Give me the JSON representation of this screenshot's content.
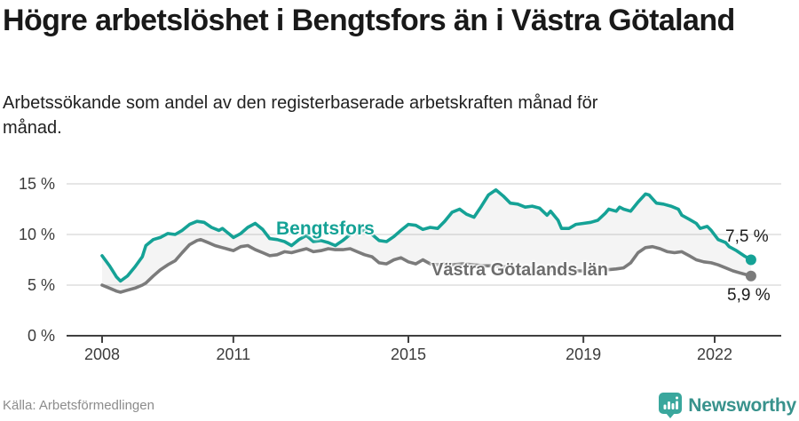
{
  "header": {
    "title": "Högre arbetslöshet i Bengtsfors än i Västra Götaland",
    "subtitle": "Arbetssökande som andel av den registerbaserade arbetskraften månad för månad."
  },
  "footer": {
    "source": "Källa: Arbetsförmedlingen",
    "brand_name": "Newsworthy",
    "brand_icon": "newsworthy-pin-bar-chart-icon"
  },
  "colors": {
    "background": "#ffffff",
    "title_text": "#191919",
    "body_text": "#212121",
    "tick_text": "#3c3c3c",
    "axis": "#404040",
    "grid": "#d8d8d8",
    "band_fill": "rgba(128,128,128,0.09)",
    "bengtsfors_teal": "#15a296",
    "region_gray": "#7b7b7b",
    "region_label_gray": "#6d6d6d",
    "source_gray": "#8c8c8c",
    "brand_teal": "#38928c",
    "brand_icon_teal": "#3aa79d"
  },
  "chart_data": {
    "type": "line",
    "title": "Högre arbetslöshet i Bengtsfors än i Västra Götaland",
    "xlabel": "",
    "ylabel": "",
    "x_unit": "year (monthly observations)",
    "y_unit": "percent of registered labour force",
    "ylim": [
      0,
      15
    ],
    "xlim": [
      2007.2,
      2023.5
    ],
    "grid": "horizontal",
    "legend": "inline-labels",
    "yticks": [
      {
        "value": 15,
        "label": "15 %"
      },
      {
        "value": 10,
        "label": "10 %"
      },
      {
        "value": 5,
        "label": "5 %"
      },
      {
        "value": 0,
        "label": "0 %"
      }
    ],
    "xticks": [
      {
        "value": 2008,
        "label": "2008"
      },
      {
        "value": 2011,
        "label": "2011"
      },
      {
        "value": 2015,
        "label": "2015"
      },
      {
        "value": 2019,
        "label": "2019"
      },
      {
        "value": 2022,
        "label": "2022"
      }
    ],
    "band_between_series": true,
    "series": [
      {
        "name": "Bengtsfors",
        "color": "#15a296",
        "end_label": "7,5 %",
        "end_value": 7.5,
        "points": [
          [
            2008.0,
            7.9
          ],
          [
            2008.17,
            6.9
          ],
          [
            2008.33,
            5.8
          ],
          [
            2008.42,
            5.4
          ],
          [
            2008.58,
            5.9
          ],
          [
            2008.75,
            6.8
          ],
          [
            2008.92,
            7.8
          ],
          [
            2009.0,
            8.9
          ],
          [
            2009.17,
            9.5
          ],
          [
            2009.33,
            9.7
          ],
          [
            2009.5,
            10.1
          ],
          [
            2009.67,
            10.0
          ],
          [
            2009.83,
            10.4
          ],
          [
            2010.0,
            11.0
          ],
          [
            2010.17,
            11.3
          ],
          [
            2010.33,
            11.2
          ],
          [
            2010.5,
            10.7
          ],
          [
            2010.67,
            10.4
          ],
          [
            2010.75,
            10.6
          ],
          [
            2010.92,
            10.0
          ],
          [
            2011.0,
            9.7
          ],
          [
            2011.17,
            10.1
          ],
          [
            2011.33,
            10.7
          ],
          [
            2011.5,
            11.1
          ],
          [
            2011.67,
            10.5
          ],
          [
            2011.83,
            9.6
          ],
          [
            2012.0,
            9.5
          ],
          [
            2012.17,
            9.3
          ],
          [
            2012.33,
            8.9
          ],
          [
            2012.5,
            9.5
          ],
          [
            2012.67,
            9.9
          ],
          [
            2012.83,
            9.3
          ],
          [
            2013.0,
            9.4
          ],
          [
            2013.17,
            9.2
          ],
          [
            2013.33,
            8.9
          ],
          [
            2013.5,
            9.4
          ],
          [
            2013.67,
            10.0
          ],
          [
            2013.83,
            10.3
          ],
          [
            2014.0,
            10.4
          ],
          [
            2014.17,
            10.0
          ],
          [
            2014.33,
            9.4
          ],
          [
            2014.5,
            9.3
          ],
          [
            2014.67,
            9.8
          ],
          [
            2014.83,
            10.4
          ],
          [
            2015.0,
            11.0
          ],
          [
            2015.17,
            10.9
          ],
          [
            2015.33,
            10.5
          ],
          [
            2015.5,
            10.7
          ],
          [
            2015.67,
            10.6
          ],
          [
            2015.83,
            11.3
          ],
          [
            2016.0,
            12.2
          ],
          [
            2016.17,
            12.5
          ],
          [
            2016.33,
            12.0
          ],
          [
            2016.5,
            11.7
          ],
          [
            2016.67,
            12.8
          ],
          [
            2016.83,
            13.9
          ],
          [
            2017.0,
            14.4
          ],
          [
            2017.17,
            13.8
          ],
          [
            2017.33,
            13.1
          ],
          [
            2017.5,
            13.0
          ],
          [
            2017.67,
            12.7
          ],
          [
            2017.83,
            12.8
          ],
          [
            2018.0,
            12.6
          ],
          [
            2018.17,
            11.9
          ],
          [
            2018.25,
            12.3
          ],
          [
            2018.42,
            11.4
          ],
          [
            2018.5,
            10.6
          ],
          [
            2018.67,
            10.6
          ],
          [
            2018.83,
            11.0
          ],
          [
            2019.0,
            11.1
          ],
          [
            2019.17,
            11.2
          ],
          [
            2019.33,
            11.4
          ],
          [
            2019.5,
            12.1
          ],
          [
            2019.58,
            12.5
          ],
          [
            2019.75,
            12.3
          ],
          [
            2019.83,
            12.7
          ],
          [
            2019.92,
            12.5
          ],
          [
            2020.08,
            12.3
          ],
          [
            2020.25,
            13.2
          ],
          [
            2020.42,
            14.0
          ],
          [
            2020.5,
            13.9
          ],
          [
            2020.67,
            13.1
          ],
          [
            2020.83,
            13.0
          ],
          [
            2021.0,
            12.8
          ],
          [
            2021.17,
            12.5
          ],
          [
            2021.25,
            11.9
          ],
          [
            2021.42,
            11.5
          ],
          [
            2021.58,
            11.1
          ],
          [
            2021.67,
            10.6
          ],
          [
            2021.83,
            10.8
          ],
          [
            2021.92,
            10.4
          ],
          [
            2022.08,
            9.5
          ],
          [
            2022.25,
            9.2
          ],
          [
            2022.33,
            8.8
          ],
          [
            2022.5,
            8.4
          ],
          [
            2022.67,
            7.9
          ],
          [
            2022.83,
            7.5
          ]
        ]
      },
      {
        "name": "Västra Götalands län",
        "color": "#7b7b7b",
        "end_label": "5,9 %",
        "end_value": 5.9,
        "points": [
          [
            2008.0,
            5.0
          ],
          [
            2008.17,
            4.7
          ],
          [
            2008.33,
            4.4
          ],
          [
            2008.42,
            4.3
          ],
          [
            2008.58,
            4.5
          ],
          [
            2008.75,
            4.7
          ],
          [
            2008.92,
            5.0
          ],
          [
            2009.0,
            5.2
          ],
          [
            2009.17,
            5.9
          ],
          [
            2009.33,
            6.5
          ],
          [
            2009.5,
            7.0
          ],
          [
            2009.67,
            7.4
          ],
          [
            2009.83,
            8.2
          ],
          [
            2010.0,
            9.0
          ],
          [
            2010.17,
            9.4
          ],
          [
            2010.25,
            9.5
          ],
          [
            2010.42,
            9.2
          ],
          [
            2010.58,
            8.9
          ],
          [
            2010.75,
            8.7
          ],
          [
            2010.92,
            8.5
          ],
          [
            2011.0,
            8.4
          ],
          [
            2011.17,
            8.8
          ],
          [
            2011.33,
            8.9
          ],
          [
            2011.5,
            8.5
          ],
          [
            2011.67,
            8.2
          ],
          [
            2011.83,
            7.9
          ],
          [
            2012.0,
            8.0
          ],
          [
            2012.17,
            8.3
          ],
          [
            2012.33,
            8.2
          ],
          [
            2012.5,
            8.4
          ],
          [
            2012.67,
            8.6
          ],
          [
            2012.83,
            8.3
          ],
          [
            2013.0,
            8.4
          ],
          [
            2013.17,
            8.6
          ],
          [
            2013.33,
            8.5
          ],
          [
            2013.5,
            8.5
          ],
          [
            2013.67,
            8.6
          ],
          [
            2013.83,
            8.3
          ],
          [
            2014.0,
            8.0
          ],
          [
            2014.17,
            7.8
          ],
          [
            2014.33,
            7.2
          ],
          [
            2014.5,
            7.1
          ],
          [
            2014.67,
            7.5
          ],
          [
            2014.83,
            7.7
          ],
          [
            2015.0,
            7.3
          ],
          [
            2015.17,
            7.1
          ],
          [
            2015.33,
            7.5
          ],
          [
            2015.5,
            7.1
          ],
          [
            2015.67,
            7.0
          ],
          [
            2015.83,
            7.1
          ],
          [
            2016.0,
            7.0
          ],
          [
            2016.25,
            7.1
          ],
          [
            2016.5,
            7.0
          ],
          [
            2016.75,
            6.9
          ],
          [
            2017.0,
            6.9
          ],
          [
            2017.25,
            6.8
          ],
          [
            2017.5,
            6.7
          ],
          [
            2017.75,
            6.7
          ],
          [
            2018.0,
            6.6
          ],
          [
            2018.25,
            6.5
          ],
          [
            2018.5,
            6.5
          ],
          [
            2018.75,
            6.4
          ],
          [
            2019.0,
            6.4
          ],
          [
            2019.25,
            6.5
          ],
          [
            2019.5,
            6.5
          ],
          [
            2019.75,
            6.6
          ],
          [
            2019.92,
            6.7
          ],
          [
            2020.08,
            7.2
          ],
          [
            2020.25,
            8.2
          ],
          [
            2020.42,
            8.7
          ],
          [
            2020.58,
            8.8
          ],
          [
            2020.75,
            8.6
          ],
          [
            2020.92,
            8.3
          ],
          [
            2021.08,
            8.2
          ],
          [
            2021.25,
            8.3
          ],
          [
            2021.42,
            7.9
          ],
          [
            2021.58,
            7.5
          ],
          [
            2021.75,
            7.3
          ],
          [
            2021.92,
            7.2
          ],
          [
            2022.08,
            7.0
          ],
          [
            2022.25,
            6.7
          ],
          [
            2022.42,
            6.4
          ],
          [
            2022.58,
            6.2
          ],
          [
            2022.75,
            6.0
          ],
          [
            2022.83,
            5.9
          ]
        ]
      }
    ]
  }
}
